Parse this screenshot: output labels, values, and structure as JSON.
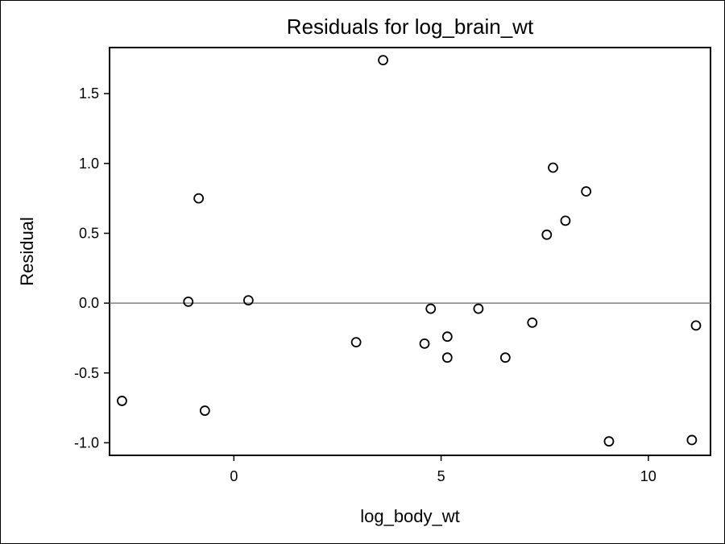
{
  "chart_data": {
    "type": "scatter",
    "title": "Residuals for log_brain_wt",
    "xlabel": "log_body_wt",
    "ylabel": "Residual",
    "xlim": [
      -3.0,
      11.5
    ],
    "ylim": [
      -1.09,
      1.83
    ],
    "xticks": [
      0,
      5,
      10
    ],
    "xtick_labels": [
      "0",
      "5",
      "10"
    ],
    "yticks": [
      -1.0,
      -0.5,
      0.0,
      0.5,
      1.0,
      1.5
    ],
    "ytick_labels": [
      "-1.0",
      "-0.5",
      "0.0",
      "0.5",
      "1.0",
      "1.5"
    ],
    "reference_line_y": 0,
    "grid": false,
    "marker": "open-circle",
    "colors": {
      "marker": "#000000",
      "reference_line": "#808080",
      "frame": "#000000"
    },
    "series": [
      {
        "x": [
          -2.7,
          -1.1,
          -0.85,
          -0.7,
          0.35,
          2.95,
          3.6,
          4.6,
          4.75,
          5.15,
          5.15,
          5.9,
          6.55,
          7.2,
          7.55,
          7.7,
          8.0,
          8.5,
          9.05,
          11.05,
          11.15
        ],
        "y": [
          -0.7,
          0.01,
          0.75,
          -0.77,
          0.02,
          -0.28,
          1.74,
          -0.29,
          -0.04,
          -0.24,
          -0.39,
          -0.04,
          -0.39,
          -0.14,
          0.49,
          0.97,
          0.59,
          0.8,
          -0.99,
          -0.98,
          -0.16
        ]
      }
    ]
  }
}
